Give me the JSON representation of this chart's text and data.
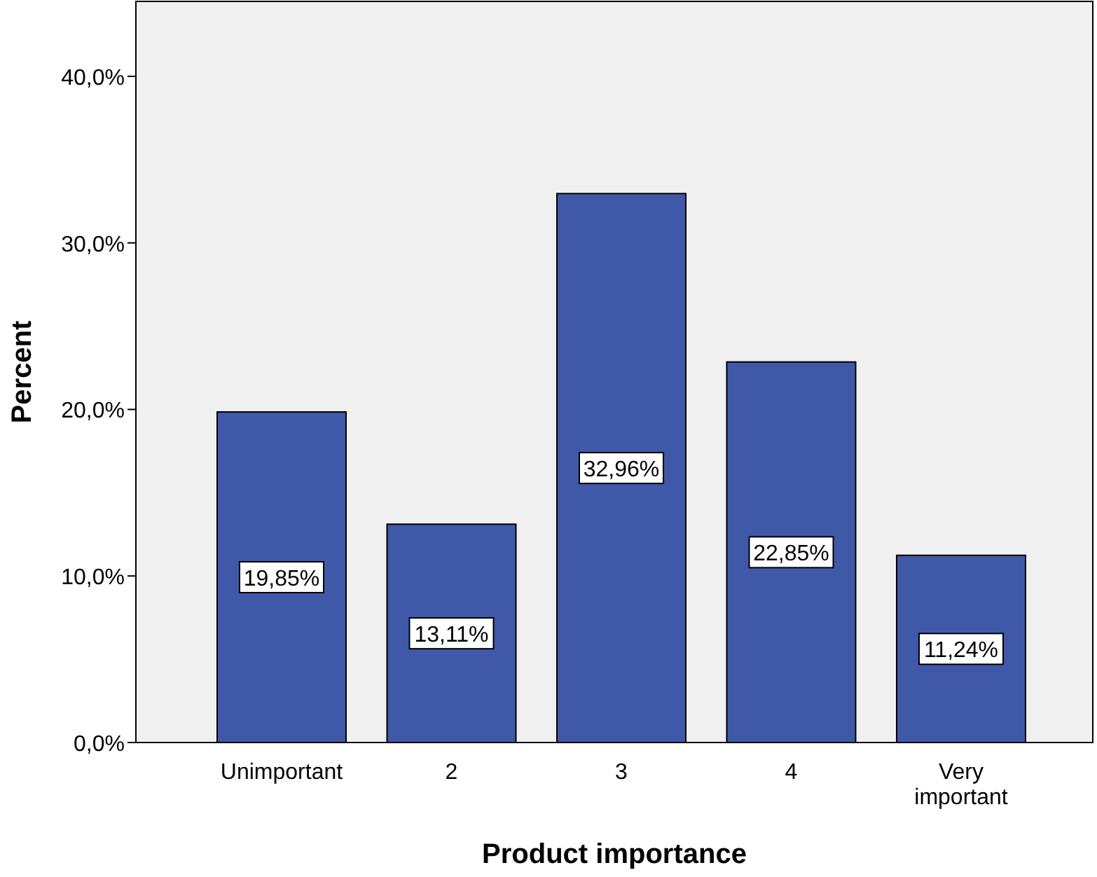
{
  "chart_data": {
    "type": "bar",
    "xlabel": "Product importance",
    "ylabel": "Percent",
    "categories": [
      "Unimportant",
      "2",
      "3",
      "4",
      "Very important"
    ],
    "values": [
      19.85,
      13.11,
      32.96,
      22.85,
      11.24
    ],
    "value_labels": [
      "19,85%",
      "13,11%",
      "32,96%",
      "22,85%",
      "11,24%"
    ],
    "color": "#3f58a8",
    "ylim": [
      0,
      44.5
    ],
    "yticks": [
      {
        "value": 0,
        "label": "0,0%"
      },
      {
        "value": 10,
        "label": "10,0%"
      },
      {
        "value": 20,
        "label": "20,0%"
      },
      {
        "value": 30,
        "label": "30,0%"
      },
      {
        "value": 40,
        "label": "40,0%"
      }
    ],
    "grid": false
  }
}
